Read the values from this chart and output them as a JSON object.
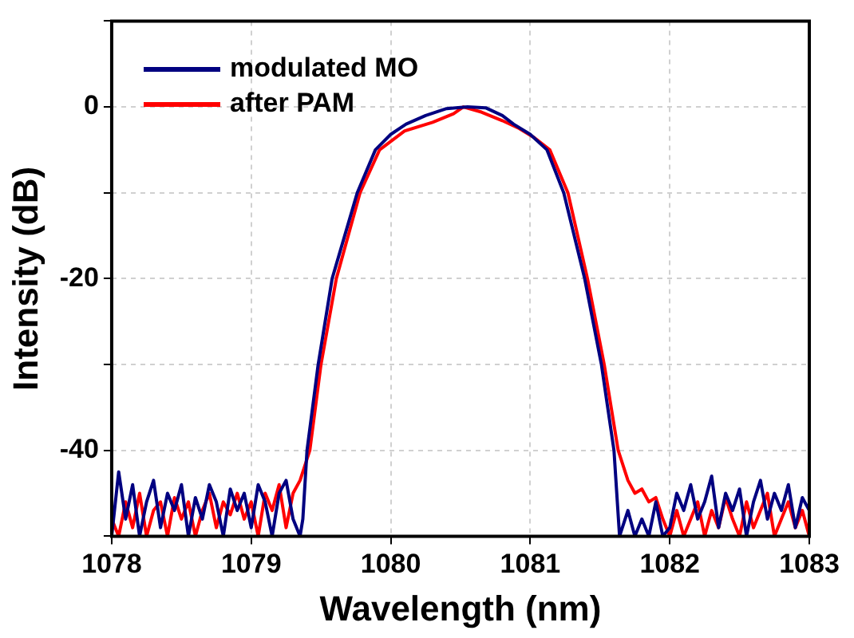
{
  "chart_data": {
    "type": "line",
    "xlabel": "Wavelength (nm)",
    "ylabel": "Intensity (dB)",
    "xlim": [
      1078,
      1083
    ],
    "xticks": [
      1078,
      1079,
      1080,
      1081,
      1082,
      1083
    ],
    "ylim": [
      -50,
      10
    ],
    "yticks": [
      {
        "value": -50,
        "label": null
      },
      {
        "value": -40,
        "label": "-40"
      },
      {
        "value": -30,
        "label": null
      },
      {
        "value": -20,
        "label": "-20"
      },
      {
        "value": -10,
        "label": null
      },
      {
        "value": 0,
        "label": "0"
      },
      {
        "value": 10,
        "label": null
      }
    ],
    "grid": true,
    "legend": "top left",
    "marker": "none",
    "line_style": "solid",
    "series": [
      {
        "name": "modulated MO",
        "color": "#000080",
        "x": [
          1078.0,
          1078.05,
          1078.1,
          1078.15,
          1078.2,
          1078.25,
          1078.3,
          1078.35,
          1078.4,
          1078.45,
          1078.5,
          1078.55,
          1078.6,
          1078.65,
          1078.7,
          1078.75,
          1078.8,
          1078.85,
          1078.9,
          1078.95,
          1079.0,
          1079.05,
          1079.1,
          1079.15,
          1079.2,
          1079.25,
          1079.3,
          1079.35,
          1079.37,
          1079.4,
          1079.48,
          1079.58,
          1079.76,
          1079.89,
          1080.0,
          1080.11,
          1080.25,
          1080.4,
          1080.55,
          1080.68,
          1080.8,
          1080.88,
          1081.0,
          1081.12,
          1081.24,
          1081.39,
          1081.51,
          1081.6,
          1081.64,
          1081.7,
          1081.75,
          1081.8,
          1081.85,
          1081.9,
          1081.95,
          1082.0,
          1082.05,
          1082.1,
          1082.15,
          1082.2,
          1082.25,
          1082.3,
          1082.35,
          1082.4,
          1082.45,
          1082.5,
          1082.55,
          1082.6,
          1082.65,
          1082.7,
          1082.75,
          1082.8,
          1082.85,
          1082.9,
          1082.95,
          1083.0
        ],
        "values": [
          -50,
          -42.5,
          -48,
          -44,
          -50,
          -46,
          -43.5,
          -49,
          -45,
          -47,
          -44,
          -50,
          -45.5,
          -48,
          -44,
          -46,
          -50,
          -44.5,
          -47,
          -45,
          -49,
          -44,
          -46,
          -50,
          -45,
          -43.5,
          -48,
          -50,
          -48,
          -40,
          -30,
          -20,
          -10,
          -5,
          -3.2,
          -2,
          -1,
          -0.2,
          0,
          -0.1,
          -1,
          -2,
          -3.2,
          -5,
          -10,
          -20,
          -30,
          -40,
          -50,
          -47,
          -50,
          -48,
          -50,
          -46,
          -50,
          -49,
          -45,
          -47,
          -44,
          -48,
          -46,
          -43,
          -49,
          -45,
          -47,
          -44.5,
          -50,
          -46,
          -43.5,
          -48,
          -45,
          -47,
          -44,
          -49,
          -45.5,
          -47
        ]
      },
      {
        "name": "after PAM",
        "color": "#ff0000",
        "x": [
          1078.0,
          1078.05,
          1078.1,
          1078.15,
          1078.2,
          1078.25,
          1078.3,
          1078.35,
          1078.4,
          1078.45,
          1078.5,
          1078.55,
          1078.6,
          1078.65,
          1078.7,
          1078.75,
          1078.8,
          1078.85,
          1078.9,
          1078.95,
          1079.0,
          1079.05,
          1079.1,
          1079.15,
          1079.2,
          1079.25,
          1079.3,
          1079.35,
          1079.38,
          1079.42,
          1079.5,
          1079.61,
          1079.78,
          1079.92,
          1080.1,
          1080.3,
          1080.45,
          1080.52,
          1080.65,
          1080.8,
          1080.92,
          1081.03,
          1081.14,
          1081.27,
          1081.41,
          1081.53,
          1081.63,
          1081.7,
          1081.75,
          1081.8,
          1081.85,
          1081.9,
          1081.95,
          1082.0,
          1082.05,
          1082.1,
          1082.15,
          1082.2,
          1082.25,
          1082.3,
          1082.35,
          1082.4,
          1082.45,
          1082.5,
          1082.55,
          1082.6,
          1082.65,
          1082.7,
          1082.75,
          1082.8,
          1082.85,
          1082.9,
          1082.95,
          1083.0
        ],
        "values": [
          -48,
          -50,
          -46,
          -49,
          -45,
          -50,
          -47,
          -46,
          -50,
          -45.5,
          -48,
          -46,
          -50,
          -47,
          -45,
          -49,
          -46,
          -47.5,
          -45,
          -48,
          -46,
          -50,
          -45,
          -47,
          -44,
          -49,
          -45,
          -43.5,
          -42,
          -40,
          -30,
          -20,
          -10,
          -5,
          -2.8,
          -1.8,
          -0.8,
          0,
          -0.6,
          -1.6,
          -2.5,
          -3.6,
          -5,
          -10,
          -20,
          -30,
          -40,
          -43.5,
          -45,
          -44.5,
          -46,
          -45.5,
          -48,
          -50,
          -47,
          -50,
          -48,
          -46,
          -50,
          -47,
          -49,
          -45.5,
          -48,
          -50,
          -46,
          -49,
          -47,
          -45,
          -50,
          -48,
          -46,
          -49,
          -47,
          -50
        ]
      }
    ]
  }
}
